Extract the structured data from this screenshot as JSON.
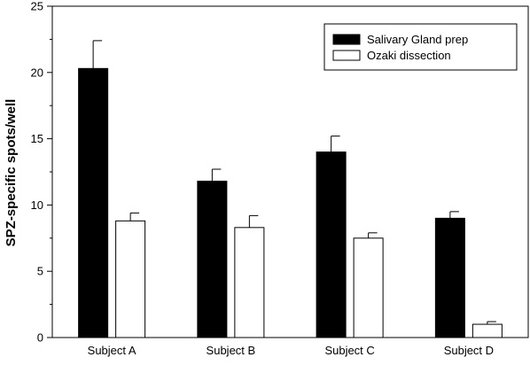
{
  "chart_data": {
    "type": "bar",
    "title": "",
    "xlabel": "",
    "ylabel": "SPZ-specific spots/well",
    "categories": [
      "Subject A",
      "Subject B",
      "Subject C",
      "Subject D"
    ],
    "ylim": [
      0,
      25
    ],
    "yticks": [
      0,
      5,
      10,
      15,
      20,
      25
    ],
    "grid": false,
    "legend_position": "top-right",
    "series": [
      {
        "name": "Salivary Gland prep",
        "values": [
          20.3,
          11.8,
          14.0,
          9.0
        ],
        "errors": [
          2.1,
          0.9,
          1.2,
          0.5
        ],
        "color": "#000000"
      },
      {
        "name": "Ozaki dissection",
        "values": [
          8.8,
          8.3,
          7.5,
          1.0
        ],
        "errors": [
          0.6,
          0.9,
          0.4,
          0.2
        ],
        "color": "#ffffff"
      }
    ]
  }
}
